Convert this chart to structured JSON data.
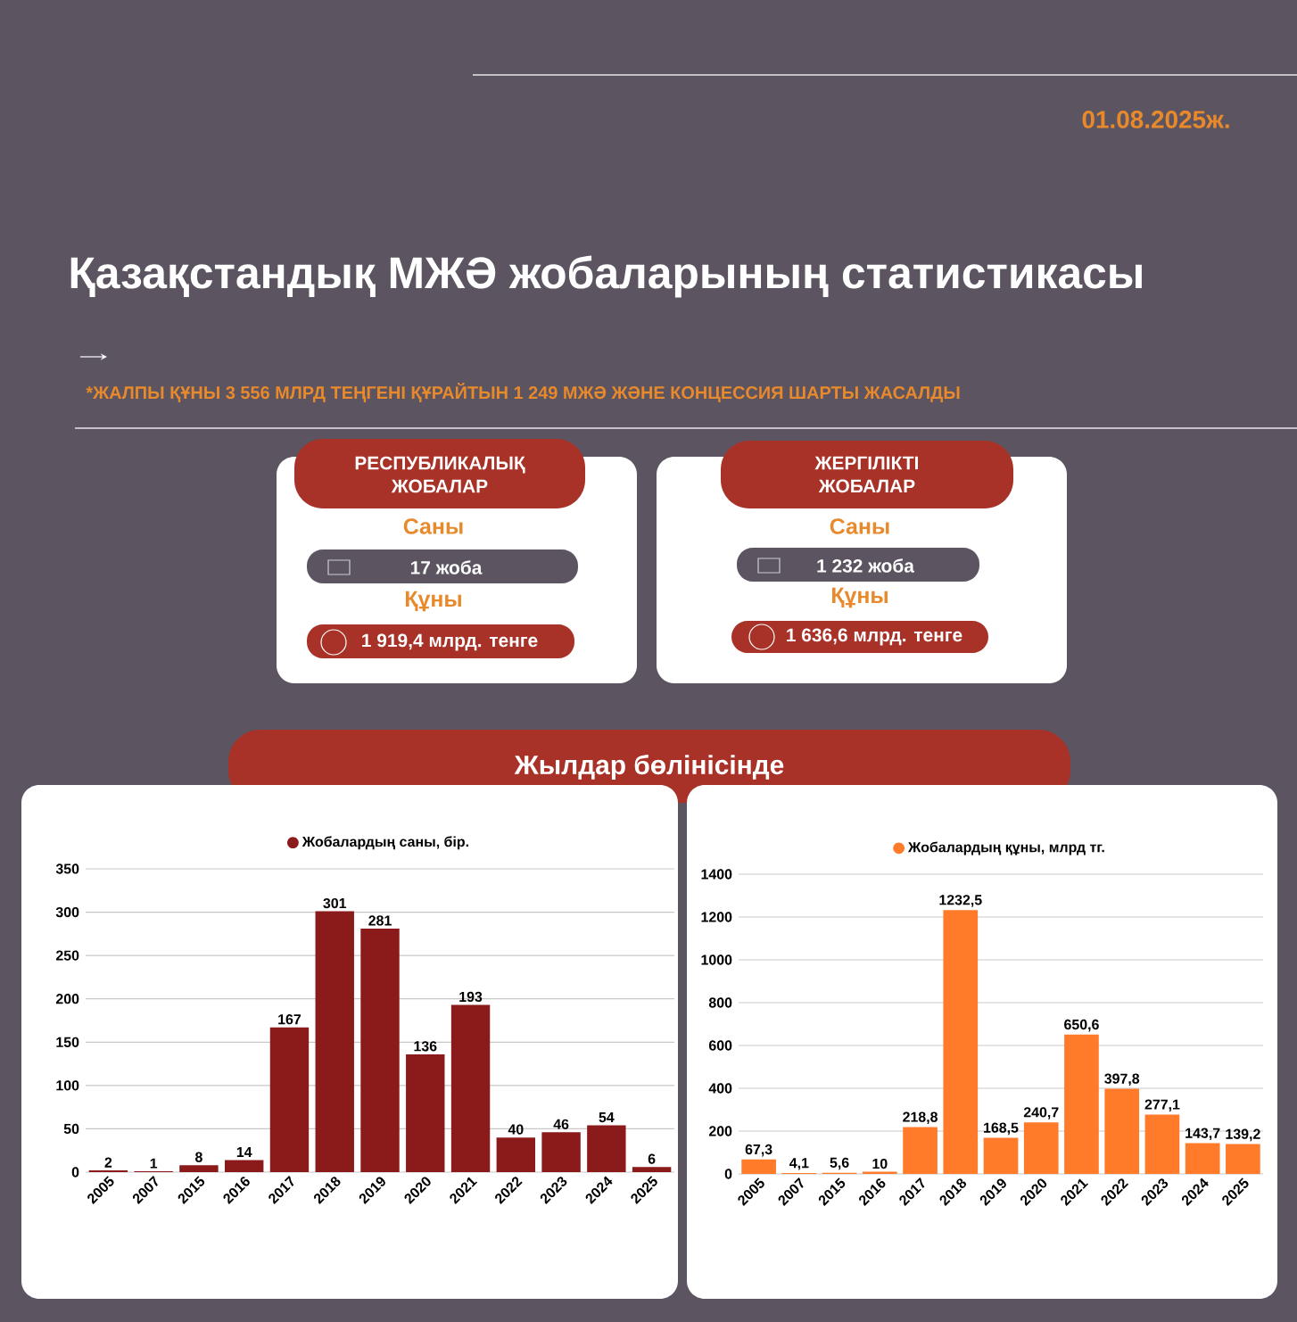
{
  "chart_data": [
    {
      "type": "other",
      "title": "Қазақстандық МЖӘ жобаларының статистикасы",
      "annotations": [
        "01.08.2025ж.",
        "*ЖАЛПЫ ҚҰНЫ 3 556 МЛРД ТЕҢГЕНІ ҚҰРАЙТЫН 1 249 МЖӘ ЖӘНЕ КОНЦЕССИЯ ШАРТЫ ЖАСАЛДЫ",
        "РЕСПУБЛИКАЛЫҚ ЖОБАЛАР",
        "Саны",
        "17 жоба",
        "Құны",
        "1 919,4 млрд. тенге",
        "ЖЕРГІЛІКТІ ЖОБАЛАР",
        "Саны",
        "1 232 жоба",
        "Құны",
        "1 636,6 млрд. тенге",
        "Жылдар бөлінісінде"
      ]
    },
    {
      "type": "bar",
      "categories": [
        "2005",
        "2007",
        "2015",
        "2016",
        "2017",
        "2018",
        "2019",
        "2020",
        "2021",
        "2022",
        "2023",
        "2024",
        "2025"
      ],
      "series": [
        {
          "name": "Жобалардың саны, бір.",
          "color": "#8b1a1a",
          "values": [
            2,
            1,
            8,
            14,
            167,
            301,
            281,
            136,
            193,
            40,
            46,
            54,
            6
          ]
        }
      ],
      "ylim": [
        0,
        350
      ],
      "yticks": [
        0,
        50,
        100,
        150,
        200,
        250,
        300,
        350
      ],
      "grid": "y",
      "legend": "top",
      "data_labels": true
    },
    {
      "type": "bar",
      "categories": [
        "2005",
        "2007",
        "2015",
        "2016",
        "2017",
        "2018",
        "2019",
        "2020",
        "2021",
        "2022",
        "2023",
        "2024",
        "2025"
      ],
      "series": [
        {
          "name": "Жобалардың құны, млрд тг.",
          "color": "#ff7b2a",
          "values": [
            67.3,
            4.1,
            5.6,
            10,
            218.8,
            1232.5,
            168.5,
            240.7,
            650.6,
            397.8,
            277.1,
            143.7,
            139.2
          ],
          "value_labels": [
            "67,3",
            "4,1",
            "5,6",
            "10",
            "218,8",
            "1232,5",
            "168,5",
            "240,7",
            "650,6",
            "397,8",
            "277,1",
            "143,7",
            "139,2"
          ]
        }
      ],
      "ylim": [
        0,
        1400
      ],
      "yticks": [
        0,
        200,
        400,
        600,
        800,
        1000,
        1200,
        1400
      ],
      "grid": "y",
      "legend": "top"
    }
  ]
}
